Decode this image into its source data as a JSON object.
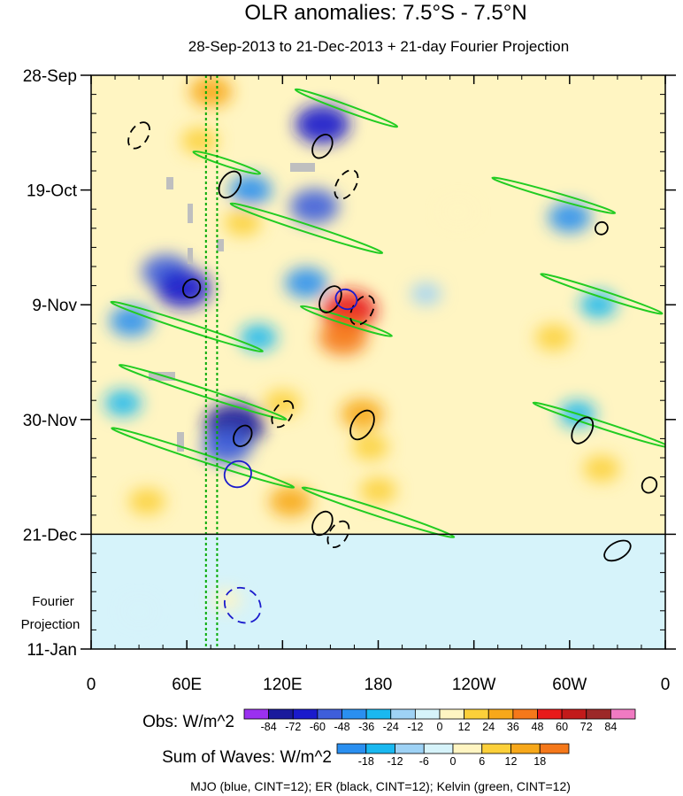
{
  "title": "OLR anomalies: 7.5°S - 7.5°N",
  "subtitle": "28-Sep-2013 to 21-Dec-2013 + 21-day Fourier Projection",
  "projection_label_line1": "Fourier",
  "projection_label_line2": "Projection",
  "footer": "MJO (blue, CINT=12); ER (black, CINT=12); Kelvin (green, CINT=12)",
  "colors": {
    "mjo": "#1a1acc",
    "er": "#000000",
    "kelvin": "#22cc22",
    "missing": "#bfbfbf",
    "projection_line": "#00aa00"
  },
  "chart_data": {
    "type": "heatmap",
    "description_axes": "Hovmoller: longitude (x) vs time (y)",
    "x_ticks": [
      "0",
      "60E",
      "120E",
      "180",
      "120W",
      "60W",
      "0"
    ],
    "x_tick_values": [
      0,
      60,
      120,
      180,
      240,
      300,
      360
    ],
    "xlim": [
      0,
      360
    ],
    "y_ticks": [
      "28-Sep",
      "19-Oct",
      "9-Nov",
      "30-Nov",
      "21-Dec",
      "11-Jan"
    ],
    "y_tick_days": [
      0,
      21,
      42,
      63,
      84,
      105
    ],
    "ylim_days": [
      0,
      105
    ],
    "observed_end_label": "21-Dec",
    "projection_marker_lon": [
      72,
      79
    ],
    "obs_colorbar": {
      "label": "Obs: W/m^2",
      "levels": [
        "-84",
        "-72",
        "-60",
        "-48",
        "-36",
        "-24",
        "-12",
        "0",
        "12",
        "24",
        "36",
        "48",
        "60",
        "72",
        "84"
      ],
      "colors": [
        "#9b30f0",
        "#1a1a9c",
        "#1a1acc",
        "#3e5edb",
        "#2a8ff0",
        "#1ab8f0",
        "#9ed2f5",
        "#d6f3fa",
        "#fff5c2",
        "#fcd03a",
        "#f7a81a",
        "#f5781a",
        "#e81a1a",
        "#c21a1a",
        "#9c2828",
        "#f07ac2"
      ]
    },
    "wave_colorbar": {
      "label": "Sum of Waves: W/m^2",
      "levels": [
        "-18",
        "-12",
        "-6",
        "0",
        "6",
        "12",
        "18"
      ],
      "colors": [
        "#2a8ff0",
        "#1ab8f0",
        "#9ed2f5",
        "#d6f3fa",
        "#fff5c2",
        "#fcd03a",
        "#f7a81a",
        "#f5781a"
      ]
    },
    "anomaly_blobs": [
      {
        "lon": 47,
        "day": 36,
        "value": -48
      },
      {
        "lon": 58,
        "day": 39,
        "value": -60
      },
      {
        "lon": 90,
        "day": 64,
        "value": -72
      },
      {
        "lon": 85,
        "day": 68,
        "value": -48
      },
      {
        "lon": 145,
        "day": 9,
        "value": -60
      },
      {
        "lon": 140,
        "day": 24,
        "value": -48
      },
      {
        "lon": 135,
        "day": 38,
        "value": -36
      },
      {
        "lon": 100,
        "day": 21,
        "value": -36
      },
      {
        "lon": 105,
        "day": 48,
        "value": -24
      },
      {
        "lon": 162,
        "day": 43,
        "value": 60
      },
      {
        "lon": 158,
        "day": 48,
        "value": 48
      },
      {
        "lon": 170,
        "day": 62,
        "value": 36
      },
      {
        "lon": 175,
        "day": 68,
        "value": 24
      },
      {
        "lon": 120,
        "day": 60,
        "value": 24
      },
      {
        "lon": 75,
        "day": 3,
        "value": 36
      },
      {
        "lon": 68,
        "day": 12,
        "value": 24
      },
      {
        "lon": 95,
        "day": 27,
        "value": 24
      },
      {
        "lon": 125,
        "day": 78,
        "value": 36
      },
      {
        "lon": 180,
        "day": 76,
        "value": 24
      },
      {
        "lon": 300,
        "day": 26,
        "value": -36
      },
      {
        "lon": 318,
        "day": 42,
        "value": -24
      },
      {
        "lon": 305,
        "day": 62,
        "value": -24
      },
      {
        "lon": 320,
        "day": 72,
        "value": 24
      },
      {
        "lon": 290,
        "day": 48,
        "value": 24
      },
      {
        "lon": 25,
        "day": 45,
        "value": -36
      },
      {
        "lon": 20,
        "day": 60,
        "value": -24
      },
      {
        "lon": 35,
        "day": 78,
        "value": 24
      },
      {
        "lon": 210,
        "day": 40,
        "value": -12
      },
      {
        "lon": 230,
        "day": 25,
        "value": 12
      },
      {
        "lon": 85,
        "day": 96,
        "value": 12
      },
      {
        "lon": 30,
        "day": 98,
        "value": -6
      }
    ],
    "mjo_contours": [
      {
        "lon": 92,
        "day": 73,
        "rx": 8,
        "ry": 2.5,
        "angle": 55,
        "sign": -1
      },
      {
        "lon": 95,
        "day": 97,
        "rx": 12,
        "ry": 3,
        "angle": 40,
        "sign": 1
      },
      {
        "lon": 160,
        "day": 41,
        "rx": 6,
        "ry": 2,
        "angle": -60,
        "sign": -1
      }
    ],
    "er_contours": [
      {
        "lon": 30,
        "day": 11,
        "rx": 9,
        "ry": 1.6,
        "angle": -58,
        "sign": 1
      },
      {
        "lon": 87,
        "day": 20,
        "rx": 9,
        "ry": 1.7,
        "angle": -58,
        "sign": -1
      },
      {
        "lon": 63,
        "day": 39,
        "rx": 6,
        "ry": 1.5,
        "angle": -58,
        "sign": -1
      },
      {
        "lon": 150,
        "day": 41,
        "rx": 9,
        "ry": 1.7,
        "angle": -58,
        "sign": -1
      },
      {
        "lon": 170,
        "day": 43,
        "rx": 10,
        "ry": 1.8,
        "angle": -58,
        "sign": 1
      },
      {
        "lon": 145,
        "day": 13,
        "rx": 8,
        "ry": 1.6,
        "angle": -58,
        "sign": -1
      },
      {
        "lon": 160,
        "day": 20,
        "rx": 10,
        "ry": 1.7,
        "angle": -58,
        "sign": 1
      },
      {
        "lon": 170,
        "day": 64,
        "rx": 10,
        "ry": 1.8,
        "angle": -58,
        "sign": -1
      },
      {
        "lon": 120,
        "day": 62,
        "rx": 9,
        "ry": 1.6,
        "angle": -58,
        "sign": 1
      },
      {
        "lon": 95,
        "day": 66,
        "rx": 7,
        "ry": 1.5,
        "angle": -58,
        "sign": -1
      },
      {
        "lon": 145,
        "day": 82,
        "rx": 8,
        "ry": 1.6,
        "angle": -58,
        "sign": -1
      },
      {
        "lon": 155,
        "day": 84,
        "rx": 9,
        "ry": 1.6,
        "angle": -58,
        "sign": 1
      },
      {
        "lon": 308,
        "day": 65,
        "rx": 9,
        "ry": 1.6,
        "angle": -58,
        "sign": -1
      },
      {
        "lon": 330,
        "day": 87,
        "rx": 9,
        "ry": 1.5,
        "angle": -30,
        "sign": -1
      },
      {
        "lon": 350,
        "day": 75,
        "rx": 5,
        "ry": 1.3,
        "angle": -58,
        "sign": -1
      },
      {
        "lon": 320,
        "day": 28,
        "rx": 4,
        "ry": 1.1,
        "angle": -45,
        "sign": -1
      }
    ],
    "kelvin_contours": [
      {
        "lon": 160,
        "day": 6,
        "rx": 34,
        "ry": 0.6,
        "angle": 20,
        "sign": -1
      },
      {
        "lon": 85,
        "day": 16,
        "rx": 22,
        "ry": 0.6,
        "angle": 18,
        "sign": -1
      },
      {
        "lon": 135,
        "day": 28,
        "rx": 50,
        "ry": 0.7,
        "angle": 18,
        "sign": -1
      },
      {
        "lon": 60,
        "day": 46,
        "rx": 50,
        "ry": 0.7,
        "angle": 18,
        "sign": -1
      },
      {
        "lon": 70,
        "day": 58,
        "rx": 55,
        "ry": 0.7,
        "angle": 18,
        "sign": -1
      },
      {
        "lon": 70,
        "day": 70,
        "rx": 60,
        "ry": 0.7,
        "angle": 18,
        "sign": -1
      },
      {
        "lon": 290,
        "day": 22,
        "rx": 40,
        "ry": 0.6,
        "angle": 16,
        "sign": -1
      },
      {
        "lon": 320,
        "day": 40,
        "rx": 40,
        "ry": 0.6,
        "angle": 18,
        "sign": -1
      },
      {
        "lon": 320,
        "day": 64,
        "rx": 45,
        "ry": 0.6,
        "angle": 18,
        "sign": -1
      },
      {
        "lon": 180,
        "day": 80,
        "rx": 50,
        "ry": 0.7,
        "angle": 18,
        "sign": -1
      },
      {
        "lon": 160,
        "day": 45,
        "rx": 30,
        "ry": 0.6,
        "angle": 18,
        "sign": -1
      }
    ]
  }
}
